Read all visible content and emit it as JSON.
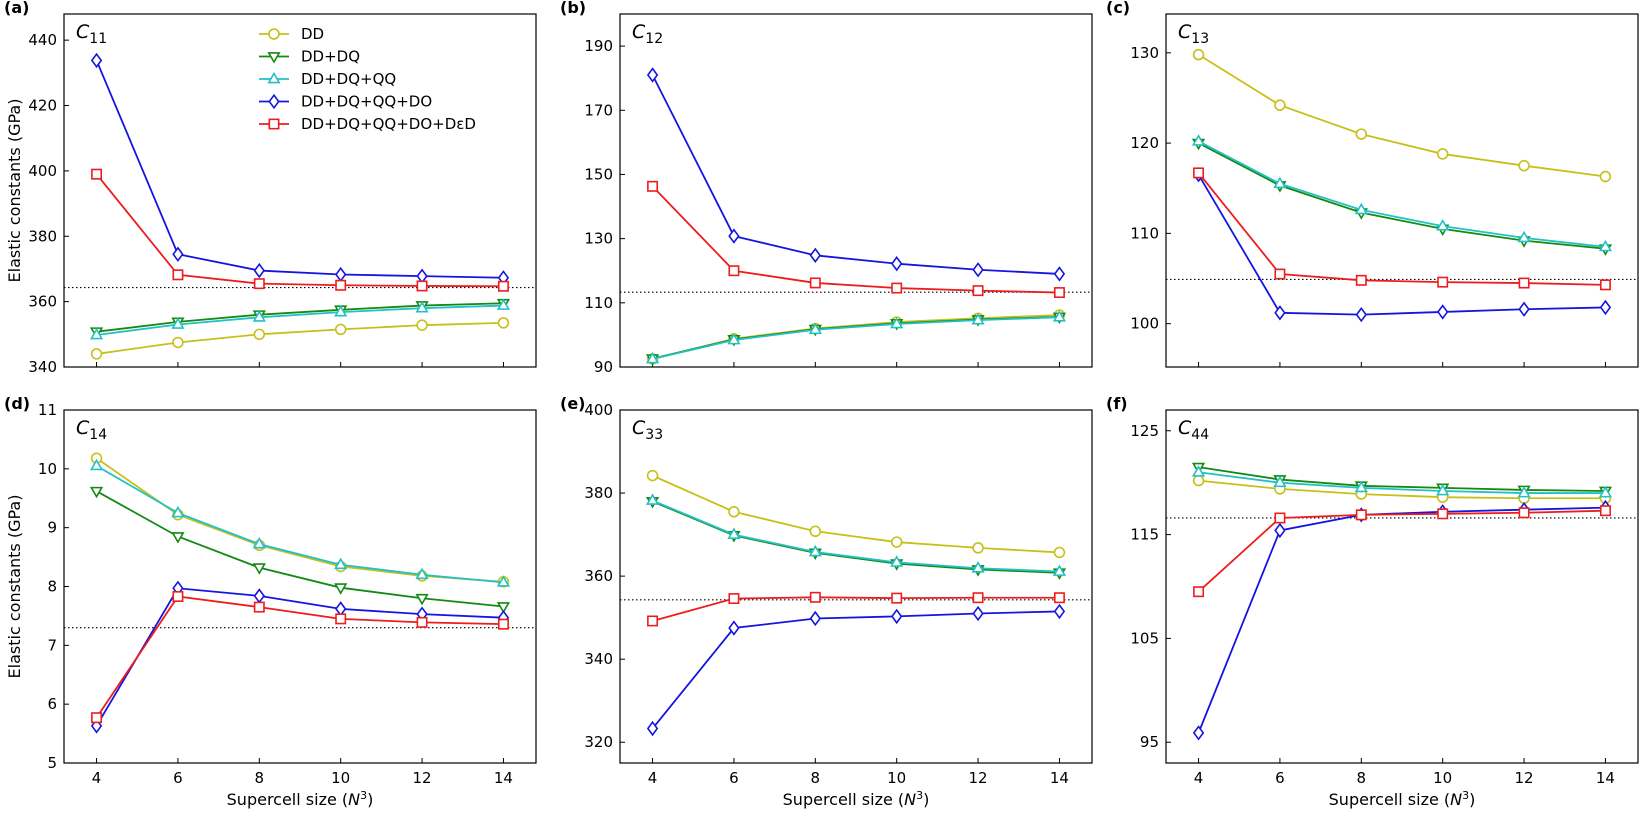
{
  "chart_data": {
    "type": "line",
    "x": [
      4,
      6,
      8,
      10,
      12,
      14
    ],
    "xlabel": "Supercell size",
    "xlabel_var": "N",
    "xlabel_sup": "3",
    "ylabel": "Elastic constants (GPa)",
    "series_meta": [
      {
        "name": "DD",
        "color": "#c8c01a",
        "marker": "circle"
      },
      {
        "name": "DD+DQ",
        "color": "#138a13",
        "marker": "triangle-down"
      },
      {
        "name": "DD+DQ+QQ",
        "color": "#22c1c6",
        "marker": "triangle-up"
      },
      {
        "name": "DD+DQ+QQ+DO",
        "color": "#1515e0",
        "marker": "diamond"
      },
      {
        "name": "DD+DQ+QQ+DO+DεD",
        "color": "#ee1c1c",
        "marker": "square"
      }
    ],
    "panels": [
      {
        "tag": "(a)",
        "title_main": "C",
        "title_sub": "11",
        "ylim": [
          340,
          448
        ],
        "yticks": [
          "340",
          "360",
          "380",
          "400",
          "420",
          "440"
        ],
        "reference": 364.3,
        "legend": true,
        "show_xticklabels": false,
        "series": [
          {
            "name": "DD",
            "values": [
              344.0,
              347.5,
              350.0,
              351.5,
              352.8,
              353.5
            ]
          },
          {
            "name": "DD+DQ",
            "values": [
              350.8,
              353.8,
              356.0,
              357.5,
              358.8,
              359.5
            ]
          },
          {
            "name": "DD+DQ+QQ",
            "values": [
              349.8,
              353.0,
              355.2,
              356.8,
              358.0,
              358.8
            ]
          },
          {
            "name": "DD+DQ+QQ+DO",
            "values": [
              433.8,
              374.5,
              369.5,
              368.3,
              367.8,
              367.3
            ]
          },
          {
            "name": "DD+DQ+QQ+DO+DεD",
            "values": [
              399.0,
              368.2,
              365.5,
              365.0,
              364.8,
              364.7
            ]
          }
        ]
      },
      {
        "tag": "(b)",
        "title_main": "C",
        "title_sub": "12",
        "ylim": [
          90,
          200
        ],
        "yticks": [
          "90",
          "110",
          "130",
          "150",
          "170",
          "190"
        ],
        "reference": 113.3,
        "legend": false,
        "show_xticklabels": false,
        "series": [
          {
            "name": "DD",
            "values": [
              92.5,
              98.8,
              102.0,
              104.0,
              105.2,
              106.2
            ]
          },
          {
            "name": "DD+DQ",
            "values": [
              92.6,
              98.6,
              101.8,
              103.6,
              104.8,
              105.6
            ]
          },
          {
            "name": "DD+DQ+QQ",
            "values": [
              92.5,
              98.4,
              101.6,
              103.4,
              104.6,
              105.5
            ]
          },
          {
            "name": "DD+DQ+QQ+DO",
            "values": [
              181.0,
              130.8,
              124.8,
              122.2,
              120.3,
              119.0
            ]
          },
          {
            "name": "DD+DQ+QQ+DO+DεD",
            "values": [
              146.3,
              120.0,
              116.2,
              114.6,
              113.8,
              113.2
            ]
          }
        ]
      },
      {
        "tag": "(c)",
        "title_main": "C",
        "title_sub": "13",
        "ylim": [
          95.2,
          134.3
        ],
        "yticks": [
          "100",
          "110",
          "120",
          "130"
        ],
        "reference": 104.9,
        "legend": false,
        "show_xticklabels": false,
        "series": [
          {
            "name": "DD",
            "values": [
              129.8,
              124.2,
              121.0,
              118.8,
              117.5,
              116.3
            ]
          },
          {
            "name": "DD+DQ",
            "values": [
              120.0,
              115.3,
              112.3,
              110.5,
              109.2,
              108.3
            ]
          },
          {
            "name": "DD+DQ+QQ",
            "values": [
              120.2,
              115.5,
              112.6,
              110.8,
              109.5,
              108.5
            ]
          },
          {
            "name": "DD+DQ+QQ+DO",
            "values": [
              116.5,
              101.2,
              101.0,
              101.3,
              101.6,
              101.8
            ]
          },
          {
            "name": "DD+DQ+QQ+DO+DεD",
            "values": [
              116.7,
              105.5,
              104.8,
              104.6,
              104.5,
              104.3
            ]
          }
        ]
      },
      {
        "tag": "(d)",
        "title_main": "C",
        "title_sub": "14",
        "ylim": [
          5,
          11
        ],
        "yticks": [
          "5",
          "6",
          "7",
          "8",
          "9",
          "10",
          "11"
        ],
        "reference": 7.3,
        "legend": false,
        "show_xticklabels": true,
        "series": [
          {
            "name": "DD",
            "values": [
              10.18,
              9.22,
              8.7,
              8.34,
              8.18,
              8.08
            ]
          },
          {
            "name": "DD+DQ",
            "values": [
              9.62,
              8.85,
              8.32,
              7.98,
              7.8,
              7.66
            ]
          },
          {
            "name": "DD+DQ+QQ",
            "values": [
              10.05,
              9.25,
              8.72,
              8.37,
              8.2,
              8.07
            ]
          },
          {
            "name": "DD+DQ+QQ+DO",
            "values": [
              5.63,
              7.97,
              7.84,
              7.62,
              7.53,
              7.47
            ]
          },
          {
            "name": "DD+DQ+QQ+DO+DεD",
            "values": [
              5.77,
              7.83,
              7.65,
              7.45,
              7.39,
              7.36
            ]
          }
        ]
      },
      {
        "tag": "(e)",
        "title_main": "C",
        "title_sub": "33",
        "ylim": [
          315,
          400
        ],
        "yticks": [
          "320",
          "340",
          "360",
          "380",
          "400"
        ],
        "reference": 354.3,
        "legend": false,
        "show_xticklabels": true,
        "series": [
          {
            "name": "DD",
            "values": [
              384.2,
              375.5,
              370.8,
              368.2,
              366.8,
              365.7
            ]
          },
          {
            "name": "DD+DQ",
            "values": [
              378.0,
              369.8,
              365.6,
              363.0,
              361.6,
              360.8
            ]
          },
          {
            "name": "DD+DQ+QQ",
            "values": [
              378.2,
              370.0,
              365.8,
              363.3,
              361.9,
              361.1
            ]
          },
          {
            "name": "DD+DQ+QQ+DO",
            "values": [
              323.3,
              347.5,
              349.8,
              350.3,
              351.0,
              351.5
            ]
          },
          {
            "name": "DD+DQ+QQ+DO+DεD",
            "values": [
              349.2,
              354.6,
              354.9,
              354.7,
              354.8,
              354.8
            ]
          }
        ]
      },
      {
        "tag": "(f)",
        "title_main": "C",
        "title_sub": "44",
        "ylim": [
          93,
          127
        ],
        "yticks": [
          "95",
          "105",
          "115",
          "125"
        ],
        "reference": 116.6,
        "legend": false,
        "show_xticklabels": true,
        "series": [
          {
            "name": "DD",
            "values": [
              120.2,
              119.4,
              118.9,
              118.6,
              118.5,
              118.5
            ]
          },
          {
            "name": "DD+DQ",
            "values": [
              121.5,
              120.3,
              119.7,
              119.5,
              119.3,
              119.2
            ]
          },
          {
            "name": "DD+DQ+QQ",
            "values": [
              121.0,
              120.0,
              119.5,
              119.2,
              119.0,
              119.0
            ]
          },
          {
            "name": "DD+DQ+QQ+DO",
            "values": [
              95.9,
              115.4,
              116.9,
              117.2,
              117.4,
              117.6
            ]
          },
          {
            "name": "DD+DQ+QQ+DO+DεD",
            "values": [
              109.5,
              116.6,
              116.9,
              117.0,
              117.1,
              117.3
            ]
          }
        ]
      }
    ]
  }
}
